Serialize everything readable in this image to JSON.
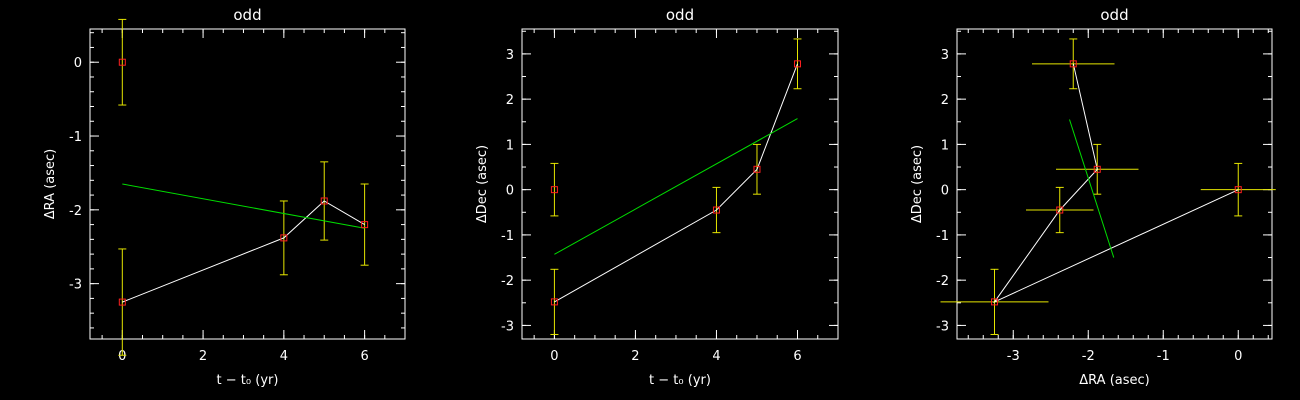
{
  "chart_data": [
    {
      "type": "scatter",
      "title": "odd",
      "xlabel": "t − t₀ (yr)",
      "ylabel": "ΔRA (asec)",
      "xlim": [
        -0.8,
        7
      ],
      "ylim": [
        -3.75,
        0.45
      ],
      "xticks": [
        0,
        2,
        4,
        6
      ],
      "yticks": [
        -3,
        -2,
        -1,
        0
      ],
      "x": [
        0,
        0,
        4,
        5,
        6
      ],
      "y": [
        0,
        -3.25,
        -2.38,
        -1.88,
        -2.2
      ],
      "yerr": [
        0.58,
        0.72,
        0.5,
        0.53,
        0.55
      ],
      "path_order": [
        1,
        2,
        3,
        4
      ],
      "fit": [
        [
          0,
          -1.65
        ],
        [
          6,
          -2.25
        ]
      ],
      "colors": {
        "point": "#ff2020",
        "error": "#e6e600",
        "path": "#ffffff",
        "fit": "#00dd00"
      }
    },
    {
      "type": "scatter",
      "title": "odd",
      "xlabel": "t − t₀ (yr)",
      "ylabel": "ΔDec (asec)",
      "xlim": [
        -0.8,
        7
      ],
      "ylim": [
        -3.3,
        3.55
      ],
      "xticks": [
        0,
        2,
        4,
        6
      ],
      "yticks": [
        -3,
        -2,
        -1,
        0,
        1,
        2,
        3
      ],
      "x": [
        0,
        0,
        4,
        5,
        6
      ],
      "y": [
        0,
        -2.48,
        -0.45,
        0.45,
        2.78
      ],
      "yerr": [
        0.58,
        0.72,
        0.5,
        0.55,
        0.55
      ],
      "path_order": [
        1,
        2,
        3,
        4
      ],
      "fit": [
        [
          0,
          -1.43
        ],
        [
          6,
          1.57
        ]
      ],
      "colors": {
        "point": "#ff2020",
        "error": "#e6e600",
        "path": "#ffffff",
        "fit": "#00dd00"
      }
    },
    {
      "type": "scatter",
      "title": "odd",
      "xlabel": "ΔRA (asec)",
      "ylabel": "ΔDec (asec)",
      "xlim": [
        -3.75,
        0.45
      ],
      "ylim": [
        -3.3,
        3.55
      ],
      "xticks": [
        -3,
        -2,
        -1,
        0
      ],
      "yticks": [
        -3,
        -2,
        -1,
        0,
        1,
        2,
        3
      ],
      "x": [
        0,
        -3.25,
        -2.38,
        -1.88,
        -2.2
      ],
      "y": [
        0,
        -2.48,
        -0.45,
        0.45,
        2.78
      ],
      "xerr": [
        0.5,
        0.72,
        0.45,
        0.55,
        0.55
      ],
      "yerr": [
        0.58,
        0.72,
        0.5,
        0.55,
        0.55
      ],
      "path_order": [
        0,
        1,
        2,
        3,
        4
      ],
      "fit": [
        [
          -2.25,
          1.55
        ],
        [
          -1.66,
          -1.5
        ]
      ],
      "colors": {
        "point": "#ff2020",
        "error": "#e6e600",
        "path": "#ffffff",
        "fit": "#00dd00"
      }
    }
  ]
}
